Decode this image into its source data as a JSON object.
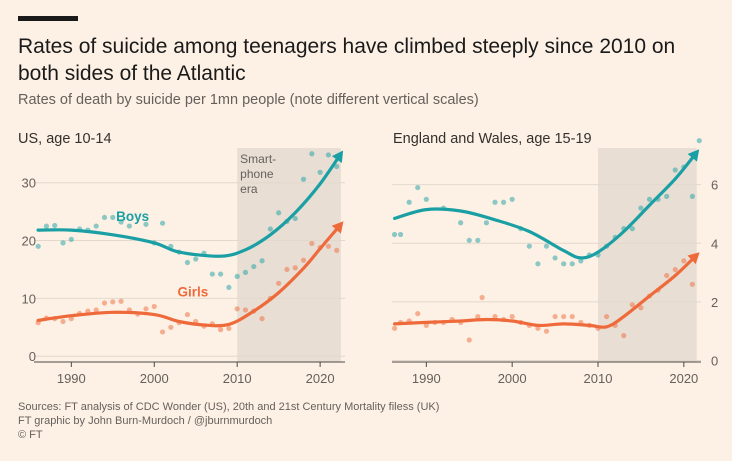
{
  "header": {
    "title": "Rates of suicide among teenagers have climbed steeply since 2010 on both sides of the Atlantic",
    "subtitle": "Rates of death by suicide per 1mn people (note different vertical scales)"
  },
  "footer": {
    "sources": "Sources: FT analysis of CDC Wonder (US), 20th and 21st Century Mortality filess (UK)",
    "credit": "FT graphic by John Burn-Murdoch / @jburnmurdoch",
    "copyright": "© FT"
  },
  "colors": {
    "background": "#fdf1e5",
    "boys": "#1aa0a4",
    "girls": "#ee6a3b",
    "shade": "#e8ded3",
    "grid": "#e3d8cc",
    "axis": "#66605c"
  },
  "chart_data": [
    {
      "type": "line",
      "title": "US, age 10-14",
      "ylim": [
        -1,
        36
      ],
      "xlim": [
        1985.5,
        2023
      ],
      "yticks": [
        0,
        10,
        20,
        30
      ],
      "xticks": [
        1990,
        2000,
        2010,
        2020
      ],
      "y_axis_side": "left",
      "shaded_region": {
        "from": 2010,
        "to": 2022.5,
        "label": [
          "Smart-",
          "phone",
          "era"
        ]
      },
      "series": [
        {
          "name": "Boys",
          "color": "#1aa0a4",
          "trend": [
            [
              1986,
              21.8
            ],
            [
              1990,
              21.8
            ],
            [
              1995,
              21
            ],
            [
              2000,
              19.6
            ],
            [
              2003,
              18
            ],
            [
              2008,
              17.3
            ],
            [
              2011,
              18.4
            ],
            [
              2014,
              21
            ],
            [
              2017,
              24.8
            ],
            [
              2020,
              29.8
            ],
            [
              2022.5,
              35
            ]
          ],
          "points": [
            [
              1986,
              19
            ],
            [
              1987,
              22.5
            ],
            [
              1988,
              22.6
            ],
            [
              1989,
              19.6
            ],
            [
              1990,
              20.2
            ],
            [
              1991,
              22
            ],
            [
              1992,
              21.8
            ],
            [
              1993,
              22.5
            ],
            [
              1994,
              24
            ],
            [
              1995,
              24
            ],
            [
              1996,
              23.2
            ],
            [
              1997,
              22.5
            ],
            [
              1999,
              22.8
            ],
            [
              2000,
              19.6
            ],
            [
              2001,
              23
            ],
            [
              2002,
              19
            ],
            [
              2003,
              18
            ],
            [
              2004,
              16.2
            ],
            [
              2005,
              16.8
            ],
            [
              2006,
              17.8
            ],
            [
              2007,
              14.2
            ],
            [
              2008,
              14.2
            ],
            [
              2009,
              11.9
            ],
            [
              2010,
              13.8
            ],
            [
              2011,
              14.5
            ],
            [
              2012,
              15.5
            ],
            [
              2013,
              16.5
            ],
            [
              2014,
              22
            ],
            [
              2015,
              24.8
            ],
            [
              2016,
              23.3
            ],
            [
              2017,
              23.8
            ],
            [
              2018,
              30.6
            ],
            [
              2019,
              35
            ],
            [
              2020,
              31.8
            ],
            [
              2021,
              34.8
            ],
            [
              2022,
              32.8
            ]
          ]
        },
        {
          "name": "Girls",
          "color": "#ee6a3b",
          "trend": [
            [
              1986,
              6.2
            ],
            [
              1990,
              7
            ],
            [
              1995,
              7.6
            ],
            [
              2000,
              7.2
            ],
            [
              2003,
              6
            ],
            [
              2006,
              5.4
            ],
            [
              2009,
              5.5
            ],
            [
              2012,
              7.8
            ],
            [
              2015,
              11
            ],
            [
              2018,
              15.2
            ],
            [
              2020,
              18.6
            ],
            [
              2022.5,
              22.8
            ]
          ],
          "points": [
            [
              1986,
              5.8
            ],
            [
              1987,
              6.6
            ],
            [
              1988,
              6.5
            ],
            [
              1989,
              6
            ],
            [
              1990,
              6.5
            ],
            [
              1991,
              7.4
            ],
            [
              1992,
              7.8
            ],
            [
              1993,
              8
            ],
            [
              1994,
              9.2
            ],
            [
              1995,
              9.4
            ],
            [
              1996,
              9.5
            ],
            [
              1997,
              8
            ],
            [
              1998,
              7.3
            ],
            [
              1999,
              8.2
            ],
            [
              2000,
              8.6
            ],
            [
              2001,
              4.2
            ],
            [
              2002,
              5
            ],
            [
              2003,
              5.8
            ],
            [
              2004,
              7.2
            ],
            [
              2005,
              6
            ],
            [
              2006,
              5.2
            ],
            [
              2007,
              5.6
            ],
            [
              2008,
              4.6
            ],
            [
              2009,
              4.8
            ],
            [
              2010,
              8.2
            ],
            [
              2011,
              8
            ],
            [
              2012,
              7.8
            ],
            [
              2013,
              6.5
            ],
            [
              2014,
              10
            ],
            [
              2015,
              12.6
            ],
            [
              2016,
              15
            ],
            [
              2017,
              15.3
            ],
            [
              2018,
              16.6
            ],
            [
              2019,
              19.5
            ],
            [
              2020,
              18.8
            ],
            [
              2021,
              19
            ],
            [
              2022,
              18.3
            ]
          ]
        }
      ]
    },
    {
      "type": "line",
      "title": "England and Wales, age 15-19",
      "ylim": [
        -0.05,
        7.25
      ],
      "xlim": [
        1986,
        2022
      ],
      "yticks": [
        0,
        2,
        4,
        6
      ],
      "xticks": [
        1990,
        2000,
        2010,
        2020
      ],
      "y_axis_side": "right",
      "shaded_region": {
        "from": 2010,
        "to": 2021.5,
        "label": []
      },
      "series": [
        {
          "name": "",
          "color": "#1aa0a4",
          "trend": [
            [
              1986.3,
              4.85
            ],
            [
              1990,
              5.15
            ],
            [
              1994,
              5.1
            ],
            [
              1998,
              4.8
            ],
            [
              2002,
              4.4
            ],
            [
              2006,
              3.75
            ],
            [
              2008,
              3.5
            ],
            [
              2010,
              3.7
            ],
            [
              2013,
              4.4
            ],
            [
              2016,
              5.3
            ],
            [
              2019,
              6.2
            ],
            [
              2021.5,
              7.1
            ]
          ],
          "points": [
            [
              1986.3,
              4.3
            ],
            [
              1987,
              4.3
            ],
            [
              1988,
              5.4
            ],
            [
              1989,
              5.9
            ],
            [
              1990,
              5.5
            ],
            [
              1992,
              5.2
            ],
            [
              1994,
              4.7
            ],
            [
              1995,
              4.1
            ],
            [
              1996,
              4.1
            ],
            [
              1997,
              4.7
            ],
            [
              1998,
              5.4
            ],
            [
              1999,
              5.4
            ],
            [
              2000,
              5.5
            ],
            [
              2001,
              4.5
            ],
            [
              2002,
              3.9
            ],
            [
              2003,
              3.3
            ],
            [
              2004,
              3.9
            ],
            [
              2005,
              3.5
            ],
            [
              2006,
              3.3
            ],
            [
              2007,
              3.3
            ],
            [
              2008,
              3.4
            ],
            [
              2009,
              3.6
            ],
            [
              2010,
              3.6
            ],
            [
              2011,
              3.9
            ],
            [
              2012,
              4.2
            ],
            [
              2013,
              4.5
            ],
            [
              2014,
              4.5
            ],
            [
              2015,
              5.2
            ],
            [
              2016,
              5.5
            ],
            [
              2017,
              5.5
            ],
            [
              2018,
              5.6
            ],
            [
              2019,
              6.5
            ],
            [
              2020,
              6.6
            ],
            [
              2021,
              5.6
            ],
            [
              2021.8,
              7.5
            ]
          ]
        },
        {
          "name": "",
          "color": "#ee6a3b",
          "trend": [
            [
              1986.3,
              1.25
            ],
            [
              1990,
              1.3
            ],
            [
              1994,
              1.35
            ],
            [
              1997,
              1.4
            ],
            [
              2000,
              1.35
            ],
            [
              2003,
              1.2
            ],
            [
              2006,
              1.25
            ],
            [
              2009,
              1.2
            ],
            [
              2011,
              1.15
            ],
            [
              2013,
              1.5
            ],
            [
              2016,
              2.2
            ],
            [
              2019,
              2.9
            ],
            [
              2021.5,
              3.6
            ]
          ],
          "points": [
            [
              1986.3,
              1.1
            ],
            [
              1987,
              1.3
            ],
            [
              1988,
              1.35
            ],
            [
              1989,
              1.6
            ],
            [
              1990,
              1.2
            ],
            [
              1991,
              1.3
            ],
            [
              1992,
              1.3
            ],
            [
              1993,
              1.4
            ],
            [
              1994,
              1.3
            ],
            [
              1995,
              0.7
            ],
            [
              1996,
              1.5
            ],
            [
              1996.5,
              2.15
            ],
            [
              1998,
              1.5
            ],
            [
              1999,
              1.4
            ],
            [
              2000,
              1.5
            ],
            [
              2001,
              1.3
            ],
            [
              2002,
              1.2
            ],
            [
              2003,
              1.1
            ],
            [
              2004,
              1.0
            ],
            [
              2005,
              1.5
            ],
            [
              2006,
              1.5
            ],
            [
              2007,
              1.5
            ],
            [
              2008,
              1.3
            ],
            [
              2009,
              1.2
            ],
            [
              2010,
              1.1
            ],
            [
              2011,
              1.5
            ],
            [
              2012,
              1.2
            ],
            [
              2013,
              0.85
            ],
            [
              2014,
              1.9
            ],
            [
              2015,
              1.8
            ],
            [
              2016,
              2.2
            ],
            [
              2017,
              2.4
            ],
            [
              2018,
              2.9
            ],
            [
              2019,
              3.1
            ],
            [
              2020,
              3.4
            ],
            [
              2021,
              2.6
            ]
          ]
        }
      ]
    }
  ],
  "labels": {
    "boys": "Boys",
    "girls": "Girls"
  }
}
